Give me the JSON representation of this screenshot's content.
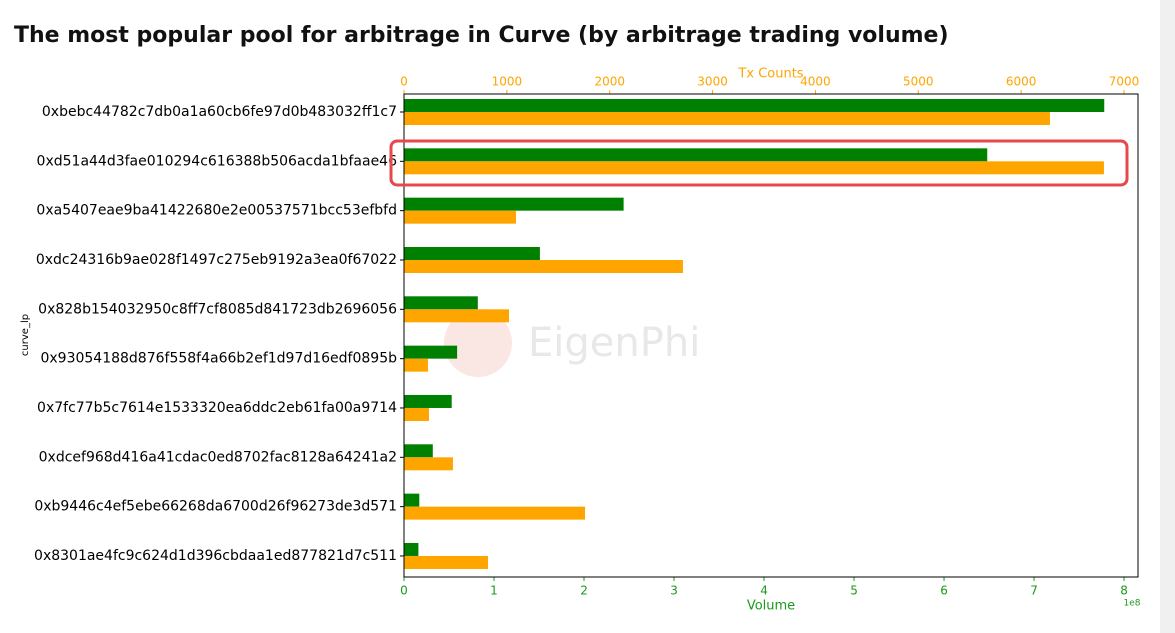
{
  "chart_data": {
    "type": "hbar",
    "title": "The most popular pool for arbitrage in Curve (by arbitrage trading volume)",
    "ylabel": "curve_lp",
    "xlabel": "Volume",
    "x_offset_label": "1e8",
    "x2label": "Tx Counts",
    "watermark": "EigenPhi",
    "categories": [
      "0xbebc44782c7db0a1a60cb6fe97d0b483032ff1c7",
      "0xd51a44d3fae010294c616388b506acda1bfaae46",
      "0xa5407eae9ba41422680e2e00537571bcc53efbfd",
      "0xdc24316b9ae028f1497c275eb9192a3ea0f67022",
      "0x828b154032950c8ff7cf8085d841723db2696056",
      "0x93054188d876f558f4a66b2ef1d97d16edf0895b",
      "0x7fc77b5c7614e1533320ea6ddc2eb61fa00a9714",
      "0xdcef968d416a41cdac0ed8702fac8128a64241a2",
      "0xb9446c4ef5ebe66268da6700d26f96273de3d571",
      "0x8301ae4fc9c624d1d396cbdaa1ed877821d7c511"
    ],
    "series": [
      {
        "color": "#008000",
        "axis": "x",
        "values": [
          7.78,
          6.48,
          2.44,
          1.51,
          0.82,
          0.59,
          0.53,
          0.32,
          0.17,
          0.16
        ]
      },
      {
        "color": "#ffa500",
        "axis": "x2",
        "values": [
          6280,
          6805,
          1089,
          2712,
          1021,
          233,
          243,
          476,
          1760,
          817
        ]
      }
    ],
    "xlim": [
      0,
      8.155
    ],
    "xticks": [
      0,
      1,
      2,
      3,
      4,
      5,
      6,
      7,
      8
    ],
    "x2lim": [
      0,
      7136
    ],
    "x2ticks": [
      0,
      1000,
      2000,
      3000,
      4000,
      5000,
      6000,
      7000
    ]
  }
}
